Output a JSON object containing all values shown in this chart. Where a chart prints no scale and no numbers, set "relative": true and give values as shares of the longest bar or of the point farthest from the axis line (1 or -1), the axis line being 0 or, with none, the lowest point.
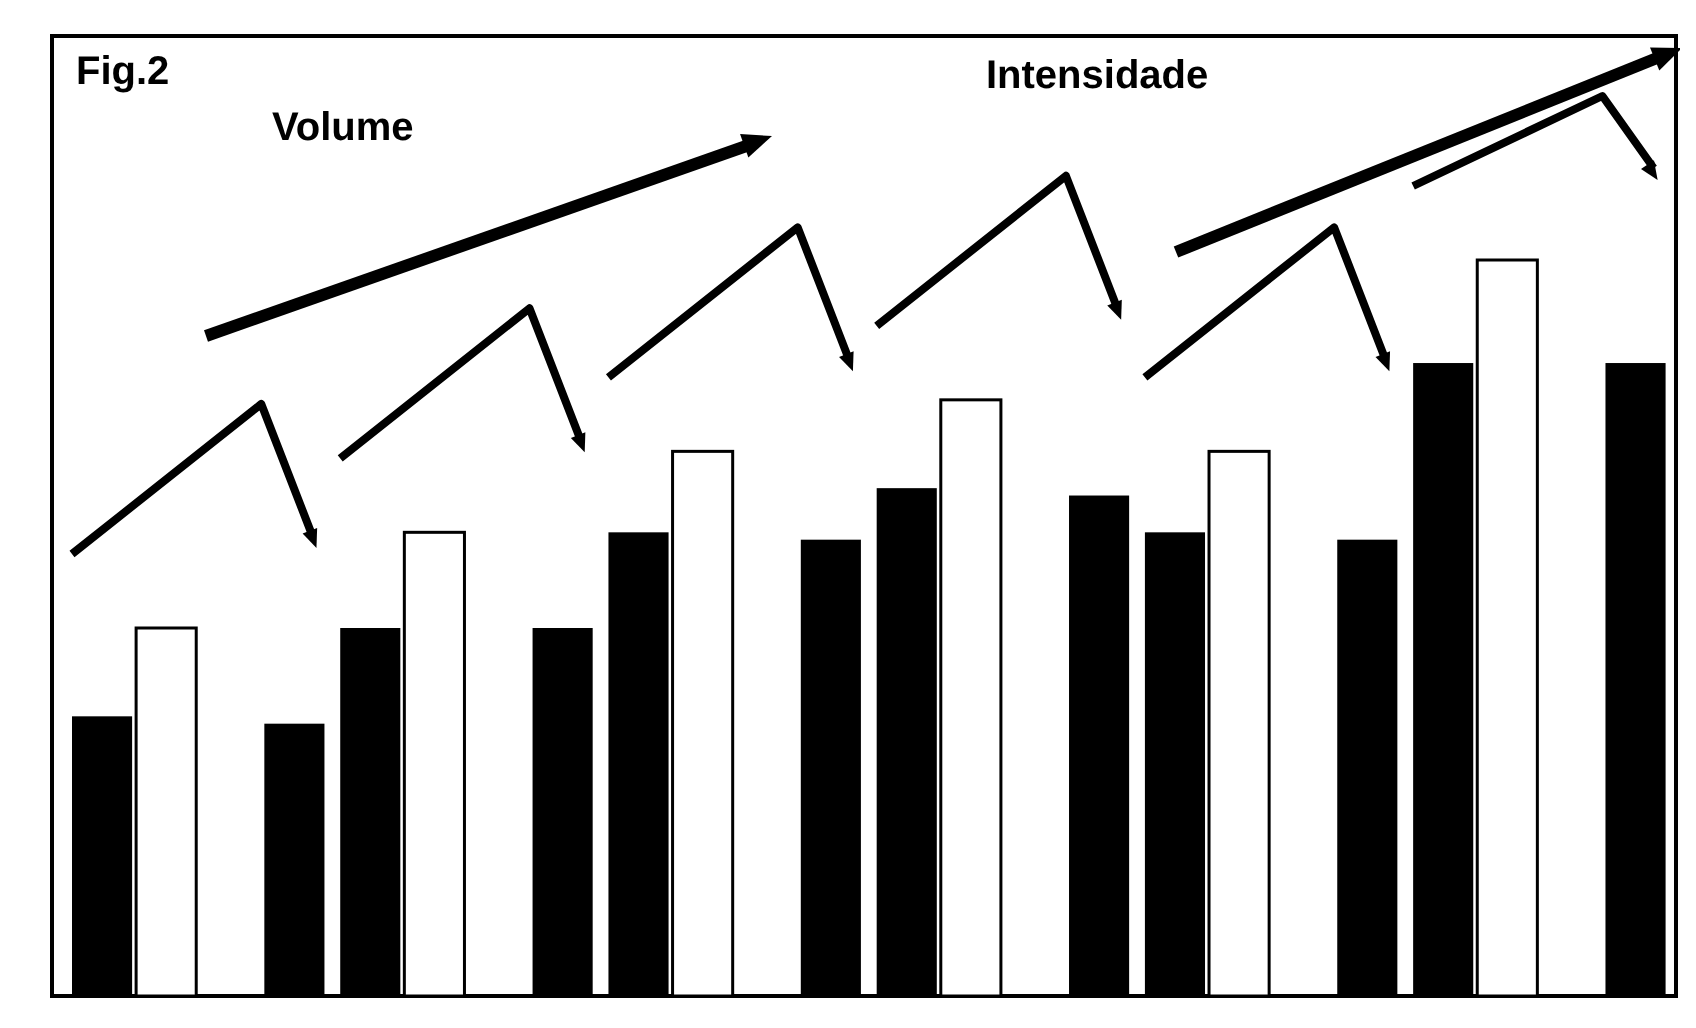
{
  "chart_data": {
    "type": "bar",
    "title": "Fig.2",
    "annotations": [
      "Volume",
      "Intensidade"
    ],
    "relative": true,
    "categories": [
      null,
      null,
      null,
      null,
      null,
      null
    ],
    "series": [
      {
        "color": "#000000",
        "values": [
          0.38,
          0.5,
          0.63,
          0.69,
          0.63,
          0.86
        ]
      },
      {
        "color": "#ffffff",
        "values": [
          0.5,
          0.63,
          0.74,
          0.81,
          0.74,
          1
        ]
      },
      {
        "color": "#000000",
        "values": [
          0.37,
          0.5,
          0.62,
          0.68,
          0.62,
          0.86
        ]
      }
    ]
  }
}
